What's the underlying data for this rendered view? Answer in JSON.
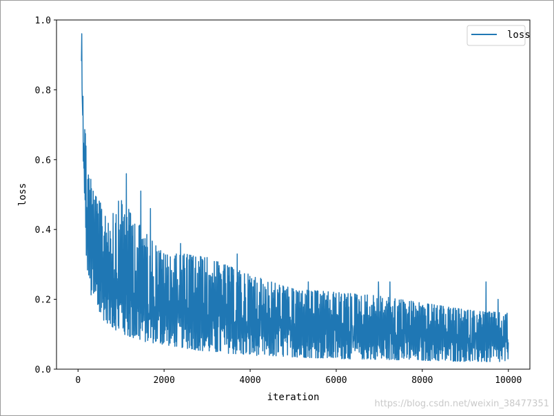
{
  "chart_data": {
    "type": "line",
    "title": "",
    "xlabel": "iteration",
    "ylabel": "loss",
    "xlim": [
      -500,
      10500
    ],
    "ylim": [
      0.0,
      1.0
    ],
    "xticks": [
      0,
      2000,
      4000,
      6000,
      8000,
      10000
    ],
    "xtick_labels": [
      "0",
      "2000",
      "4000",
      "6000",
      "8000",
      "10000"
    ],
    "yticks": [
      0.0,
      0.2,
      0.4,
      0.6,
      0.8,
      1.0
    ],
    "ytick_labels": [
      "0.0",
      "0.2",
      "0.4",
      "0.6",
      "0.8",
      "1.0"
    ],
    "grid": false,
    "legend": {
      "position": "top-right",
      "entries": [
        "loss"
      ]
    },
    "series": [
      {
        "name": "loss",
        "color": "#1f77b4",
        "envelope": {
          "x": [
            80,
            150,
            200,
            300,
            400,
            600,
            800,
            1000,
            1500,
            2000,
            2500,
            3000,
            4000,
            5000,
            6000,
            7000,
            8000,
            9000,
            10000
          ],
          "upper": [
            1.0,
            0.73,
            0.62,
            0.55,
            0.5,
            0.46,
            0.46,
            0.49,
            0.4,
            0.33,
            0.33,
            0.32,
            0.27,
            0.23,
            0.22,
            0.21,
            0.19,
            0.17,
            0.16
          ],
          "lower": [
            0.85,
            0.42,
            0.3,
            0.21,
            0.17,
            0.14,
            0.12,
            0.1,
            0.08,
            0.07,
            0.06,
            0.05,
            0.04,
            0.035,
            0.03,
            0.028,
            0.025,
            0.022,
            0.02
          ]
        },
        "spikes": [
          {
            "x": 1120,
            "y": 0.56
          },
          {
            "x": 1460,
            "y": 0.51
          },
          {
            "x": 1680,
            "y": 0.46
          },
          {
            "x": 2380,
            "y": 0.36
          },
          {
            "x": 3700,
            "y": 0.33
          },
          {
            "x": 5350,
            "y": 0.25
          },
          {
            "x": 6980,
            "y": 0.25
          },
          {
            "x": 7250,
            "y": 0.25
          },
          {
            "x": 9480,
            "y": 0.25
          },
          {
            "x": 9760,
            "y": 0.2
          }
        ]
      }
    ]
  },
  "watermark": "https://blog.csdn.net/weixin_38477351"
}
